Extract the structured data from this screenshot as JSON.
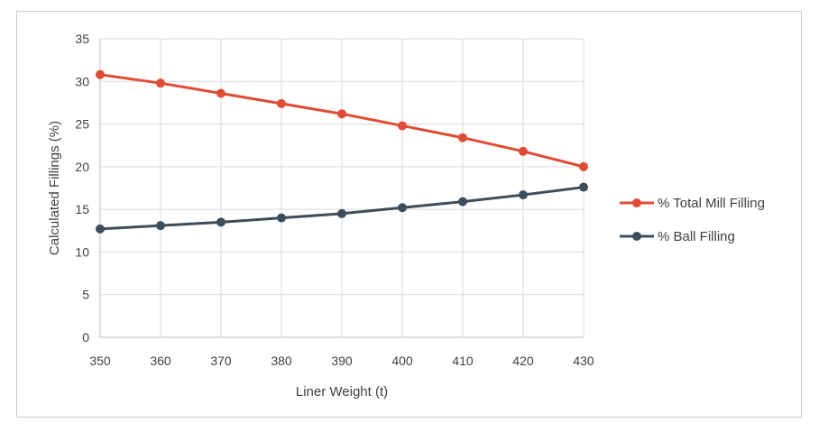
{
  "chart_data": {
    "type": "line",
    "title": "",
    "xlabel": "Liner Weight (t)",
    "ylabel": "Calculated Fillings (%)",
    "x": [
      350,
      360,
      370,
      380,
      390,
      400,
      410,
      420,
      430
    ],
    "xlim": [
      350,
      430
    ],
    "ylim": [
      0,
      35
    ],
    "yticks": [
      0,
      5,
      10,
      15,
      20,
      25,
      30,
      35
    ],
    "grid": true,
    "legend_position": "right",
    "series": [
      {
        "name": "% Total Mill Filling",
        "color": "#e04b35",
        "values": [
          30.8,
          29.8,
          28.6,
          27.4,
          26.2,
          24.8,
          23.4,
          21.8,
          20.0
        ]
      },
      {
        "name": "% Ball Filling",
        "color": "#3d4d5a",
        "values": [
          12.7,
          13.1,
          13.5,
          14.0,
          14.5,
          15.2,
          15.9,
          16.7,
          17.6
        ]
      }
    ]
  }
}
